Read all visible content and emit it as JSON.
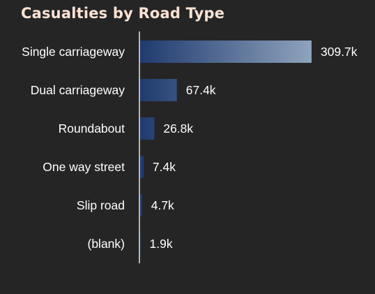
{
  "chart_data": {
    "type": "bar",
    "orientation": "horizontal",
    "title": "Casualties by Road Type",
    "categories": [
      "Single carriageway",
      "Dual carriageway",
      "Roundabout",
      "One way street",
      "Slip road",
      "(blank)"
    ],
    "values": [
      309700,
      67400,
      26800,
      7400,
      4700,
      1900
    ],
    "value_labels": [
      "309.7k",
      "67.4k",
      "26.8k",
      "7.4k",
      "4.7k",
      "1.9k"
    ],
    "xlim": [
      0,
      309700
    ],
    "grid": false,
    "legend": "none",
    "colors": {
      "background": "#252525",
      "title": "#fbe3d4",
      "text": "#ffffff",
      "axis": "#e6e6e6",
      "bar_start": "#1f3a6e",
      "bar_end": "#8fa3bd"
    }
  }
}
